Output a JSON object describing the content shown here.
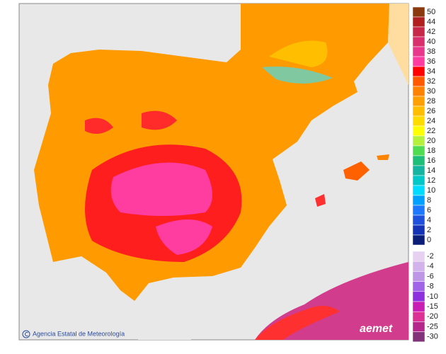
{
  "map": {
    "credit": "Agencia Estatal de Meteorología",
    "logo": "aemet",
    "scale": [
      {
        "label": 50,
        "color": "#8b3a10"
      },
      {
        "label": 44,
        "color": "#b02020"
      },
      {
        "label": 42,
        "color": "#c82848"
      },
      {
        "label": 40,
        "color": "#d8306c"
      },
      {
        "label": 38,
        "color": "#e8388c"
      },
      {
        "label": 36,
        "color": "#ff3ca0"
      },
      {
        "label": 34,
        "color": "#ff0000"
      },
      {
        "label": 32,
        "color": "#ff5a00"
      },
      {
        "label": 30,
        "color": "#ff8200"
      },
      {
        "label": 28,
        "color": "#ffa000"
      },
      {
        "label": 26,
        "color": "#ffbe00"
      },
      {
        "label": 24,
        "color": "#ffdc00"
      },
      {
        "label": 22,
        "color": "#ffff00"
      },
      {
        "label": 20,
        "color": "#b4f03c"
      },
      {
        "label": 18,
        "color": "#50dc50"
      },
      {
        "label": 16,
        "color": "#1ebe78"
      },
      {
        "label": 14,
        "color": "#14b4a0"
      },
      {
        "label": 12,
        "color": "#00c8c8"
      },
      {
        "label": 10,
        "color": "#00dcff"
      },
      {
        "label": 8,
        "color": "#00a0ff"
      },
      {
        "label": 6,
        "color": "#1e78ff"
      },
      {
        "label": 4,
        "color": "#1e50dc"
      },
      {
        "label": 2,
        "color": "#1432b4"
      },
      {
        "label": 0,
        "color": "#0a1e78"
      }
    ],
    "negative_scale": [
      {
        "label": -2,
        "color": "#e6d2f0"
      },
      {
        "label": -4,
        "color": "#d2b4eb"
      },
      {
        "label": -6,
        "color": "#be96e6"
      },
      {
        "label": -8,
        "color": "#a064e6"
      },
      {
        "label": -10,
        "color": "#8c32dc"
      },
      {
        "label": -15,
        "color": "#c81eb4"
      },
      {
        "label": -20,
        "color": "#dc3296"
      },
      {
        "label": -25,
        "color": "#b4288c"
      },
      {
        "label": -30,
        "color": "#823278"
      }
    ]
  }
}
